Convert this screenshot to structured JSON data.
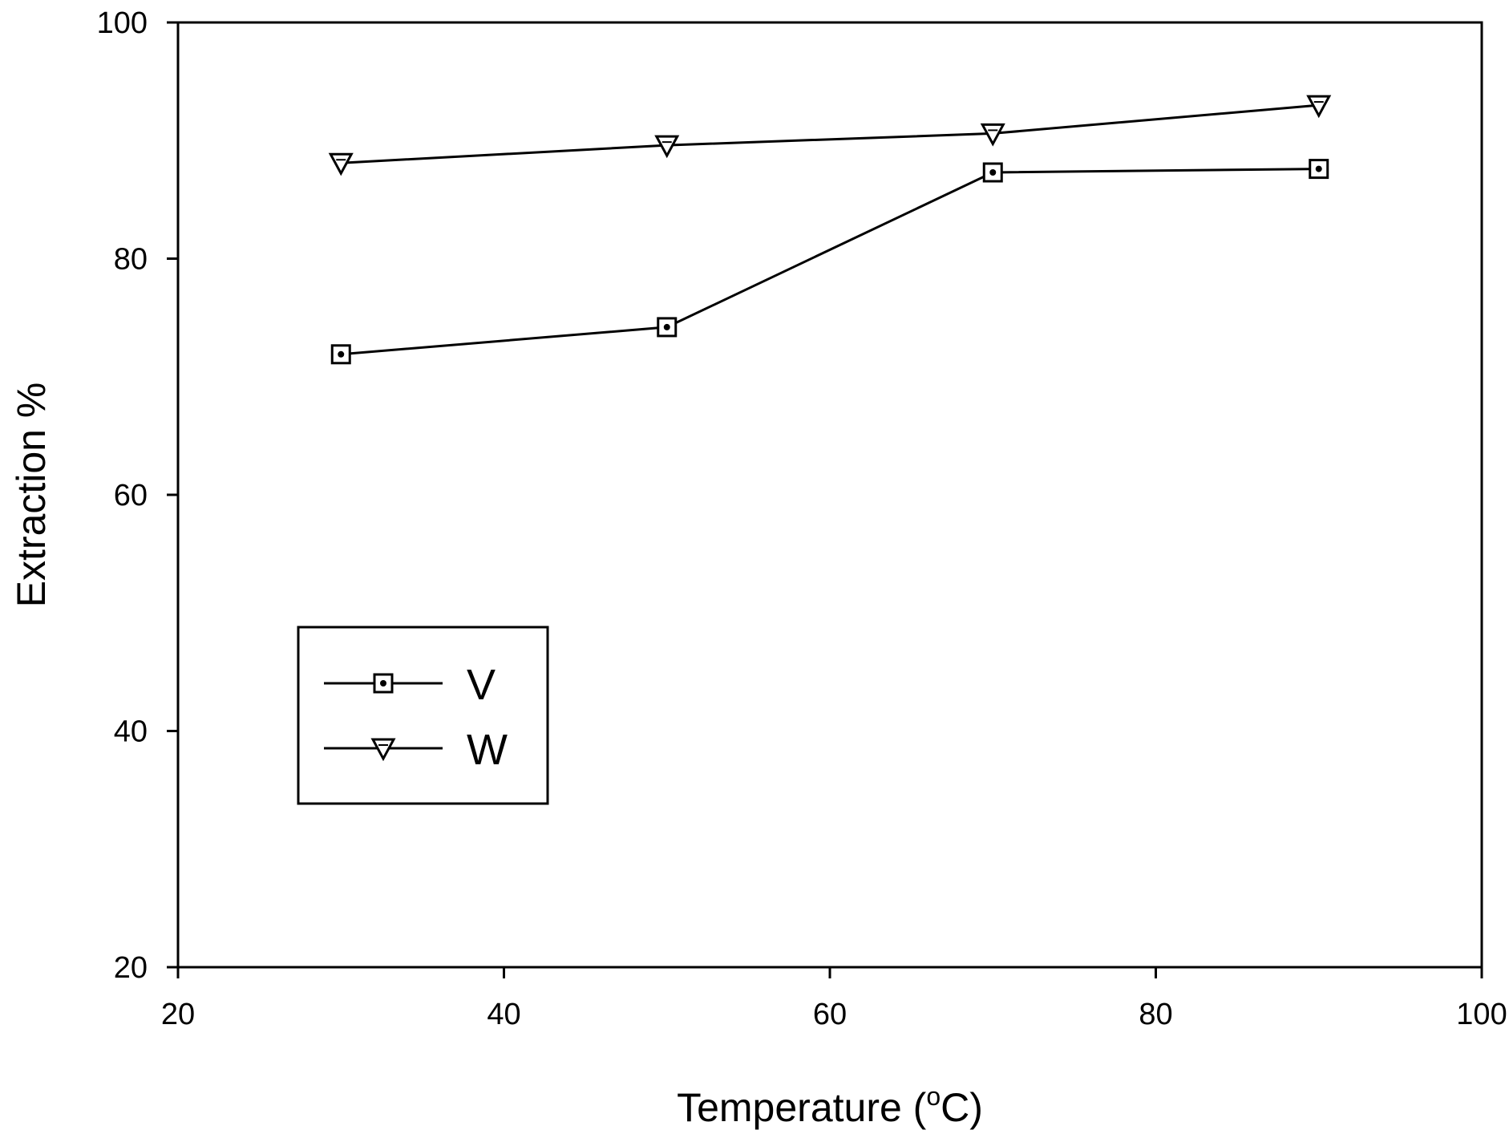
{
  "chart_data": {
    "type": "line",
    "title": "",
    "xlabel_main": "Temperature (",
    "xlabel_sup": "o",
    "xlabel_end": "C)",
    "ylabel": "Extraction %",
    "xlim": [
      20,
      100
    ],
    "ylim": [
      20,
      100
    ],
    "xticks": [
      20,
      40,
      60,
      80,
      100
    ],
    "yticks": [
      20,
      40,
      60,
      80,
      100
    ],
    "xtick_labels": [
      "20",
      "40",
      "60",
      "80",
      "100"
    ],
    "ytick_labels": [
      "20",
      "40",
      "60",
      "80",
      "100"
    ],
    "grid": false,
    "legend_position": "lower-left",
    "x": [
      30,
      50,
      70,
      90
    ],
    "series": [
      {
        "name": "V",
        "marker": "square-dot",
        "values": [
          71.9,
          74.2,
          87.3,
          87.6
        ]
      },
      {
        "name": "W",
        "marker": "triangle-down",
        "values": [
          88.1,
          89.6,
          90.6,
          93.0
        ]
      }
    ]
  }
}
